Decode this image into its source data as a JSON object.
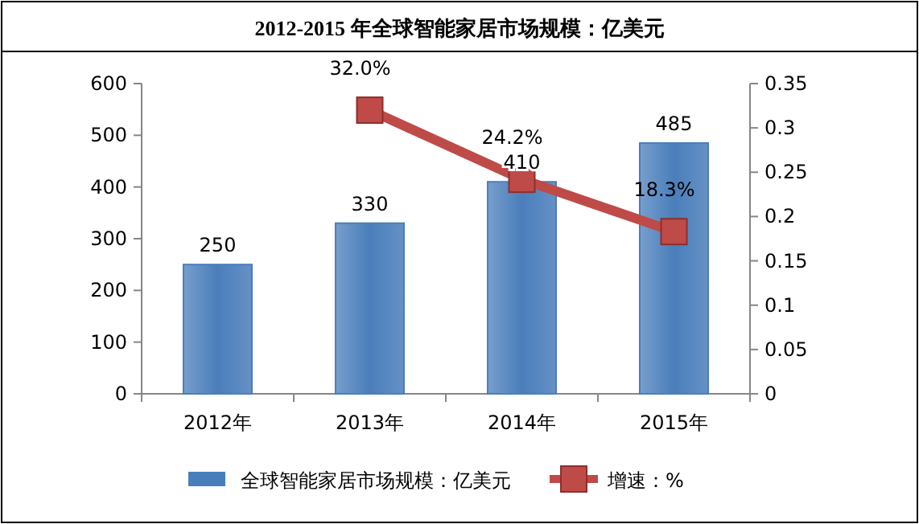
{
  "chart_data": {
    "type": "bar",
    "title": "2012-2015 年全球智能家居市场规模：亿美元",
    "categories": [
      "2012年",
      "2013年",
      "2014年",
      "2015年"
    ],
    "series": [
      {
        "name": "全球智能家居市场规模：亿美元",
        "color": "#4a7ebb",
        "values": [
          250,
          330,
          410,
          485
        ],
        "value_labels": [
          "250",
          "330",
          "410",
          "485"
        ]
      },
      {
        "name": "增速：%",
        "type": "line",
        "axis": "y2",
        "color": "#be4b48",
        "marker": "square",
        "values": [
          null,
          0.32,
          0.242,
          0.183
        ],
        "value_labels": [
          null,
          "32.0%",
          "24.2%",
          "18.3%"
        ]
      }
    ],
    "ylim": [
      0,
      600
    ],
    "yticks": [
      0,
      100,
      200,
      300,
      400,
      500,
      600
    ],
    "y2lim": [
      0,
      0.35
    ],
    "y2ticks": [
      0,
      0.05,
      0.1,
      0.15,
      0.2,
      0.25,
      0.3,
      0.35
    ],
    "legend": "bottom",
    "grid": false
  }
}
